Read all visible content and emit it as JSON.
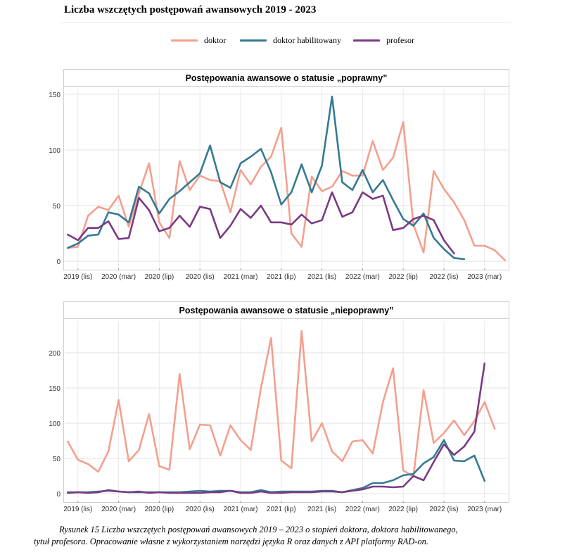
{
  "header": {
    "title": "Liczba wszczętych postępowań awansowych 2019 - 2023"
  },
  "legend": [
    {
      "name": "doktor",
      "color": "#f4a08e"
    },
    {
      "name": "doktor habilitowany",
      "color": "#357a92"
    },
    {
      "name": "profesor",
      "color": "#7b3a84"
    }
  ],
  "chart_data": [
    {
      "type": "line",
      "title": "Postępowania awansowe o statusie „poprawny”",
      "xlabel": "",
      "ylabel": "",
      "x_tick_labels": [
        "2019 (lis)",
        "2020 (mar)",
        "2020 (lip)",
        "2020 (lis)",
        "2021 (mar)",
        "2021 (lip)",
        "2021 (lis)",
        "2022 (mar)",
        "2022 (lip)",
        "2022 (lis)",
        "2023 (mar)"
      ],
      "x_tick_positions": [
        1,
        5,
        9,
        13,
        17,
        21,
        25,
        29,
        33,
        37,
        41
      ],
      "xlim": [
        -0.3,
        43.3
      ],
      "ylim": [
        -5,
        155
      ],
      "y_ticks": [
        0,
        50,
        100,
        150
      ],
      "grid": true,
      "series": [
        {
          "name": "doktor",
          "color": "#f4a08e",
          "x_start": 0,
          "values": [
            12,
            13,
            41,
            49,
            46,
            59,
            31,
            61,
            88,
            35,
            21,
            90,
            64,
            77,
            73,
            72,
            44,
            82,
            69,
            85,
            94,
            120,
            25,
            13,
            76,
            63,
            67,
            81,
            77,
            77,
            108,
            82,
            93,
            125,
            33,
            8,
            81,
            65,
            53,
            37,
            14,
            14,
            10,
            1
          ]
        },
        {
          "name": "doktor habilitowany",
          "color": "#357a92",
          "x_start": 0,
          "values": [
            12,
            16,
            23,
            24,
            44,
            42,
            35,
            67,
            61,
            43,
            56,
            63,
            71,
            79,
            104,
            71,
            66,
            88,
            94,
            101,
            80,
            51,
            62,
            87,
            62,
            86,
            148,
            71,
            64,
            82,
            62,
            73,
            55,
            38,
            32,
            43,
            21,
            11,
            3,
            2
          ]
        },
        {
          "name": "profesor",
          "color": "#7b3a84",
          "x_start": 0,
          "values": [
            24,
            19,
            30,
            30,
            36,
            20,
            21,
            57,
            46,
            27,
            30,
            41,
            31,
            49,
            47,
            21,
            32,
            47,
            39,
            50,
            35,
            35,
            33,
            42,
            34,
            37,
            62,
            40,
            44,
            62,
            56,
            59,
            28,
            30,
            38,
            41,
            37,
            19,
            7
          ]
        }
      ]
    },
    {
      "type": "line",
      "title": "Postępowania awansowe o statusie „niepoprawny”",
      "xlabel": "",
      "ylabel": "",
      "x_tick_labels": [
        "2019 (lis)",
        "2020 (mar)",
        "2020 (lip)",
        "2020 (lis)",
        "2021 (mar)",
        "2021 (lip)",
        "2021 (lis)",
        "2022 (mar)",
        "2022 (lip)",
        "2022 (lis)",
        "2023 (mar)"
      ],
      "x_tick_positions": [
        1,
        5,
        9,
        13,
        17,
        21,
        25,
        29,
        33,
        37,
        41
      ],
      "xlim": [
        -0.3,
        43.3
      ],
      "ylim": [
        -8,
        245
      ],
      "y_ticks": [
        0,
        50,
        100,
        150,
        200
      ],
      "grid": true,
      "series": [
        {
          "name": "doktor",
          "color": "#f4a08e",
          "x_start": 0,
          "values": [
            74,
            48,
            42,
            31,
            60,
            133,
            46,
            62,
            113,
            39,
            34,
            170,
            63,
            98,
            97,
            54,
            97,
            76,
            62,
            150,
            221,
            47,
            36,
            231,
            74,
            100,
            60,
            46,
            74,
            76,
            57,
            130,
            178,
            33,
            24,
            147,
            72,
            86,
            104,
            83,
            103,
            130,
            92
          ]
        },
        {
          "name": "doktor habilitowany",
          "color": "#357a92",
          "x_start": 0,
          "values": [
            2,
            2,
            2,
            3,
            4,
            3,
            2,
            2,
            2,
            2,
            2,
            2,
            3,
            4,
            3,
            4,
            4,
            2,
            2,
            5,
            2,
            3,
            3,
            3,
            3,
            4,
            4,
            2,
            5,
            8,
            15,
            15,
            19,
            26,
            28,
            43,
            52,
            76,
            47,
            46,
            54,
            18
          ]
        },
        {
          "name": "profesor",
          "color": "#7b3a84",
          "x_start": 0,
          "values": [
            1,
            2,
            1,
            2,
            5,
            3,
            2,
            3,
            1,
            2,
            1,
            1,
            1,
            1,
            2,
            2,
            4,
            1,
            1,
            3,
            1,
            1,
            2,
            2,
            2,
            3,
            3,
            2,
            4,
            6,
            10,
            10,
            9,
            10,
            25,
            19,
            45,
            70,
            55,
            67,
            88,
            185
          ]
        }
      ]
    }
  ],
  "caption": {
    "line1": "Rysunek 15 Liczba wszczętych postępowań awansowych 2019 – 2023 o stopień doktora, doktora habilitowanego,",
    "line2": "tytuł profesora. Opracowanie własne z wykorzystaniem  narzędzi języka R oraz danych z API platformy RAD-on."
  }
}
